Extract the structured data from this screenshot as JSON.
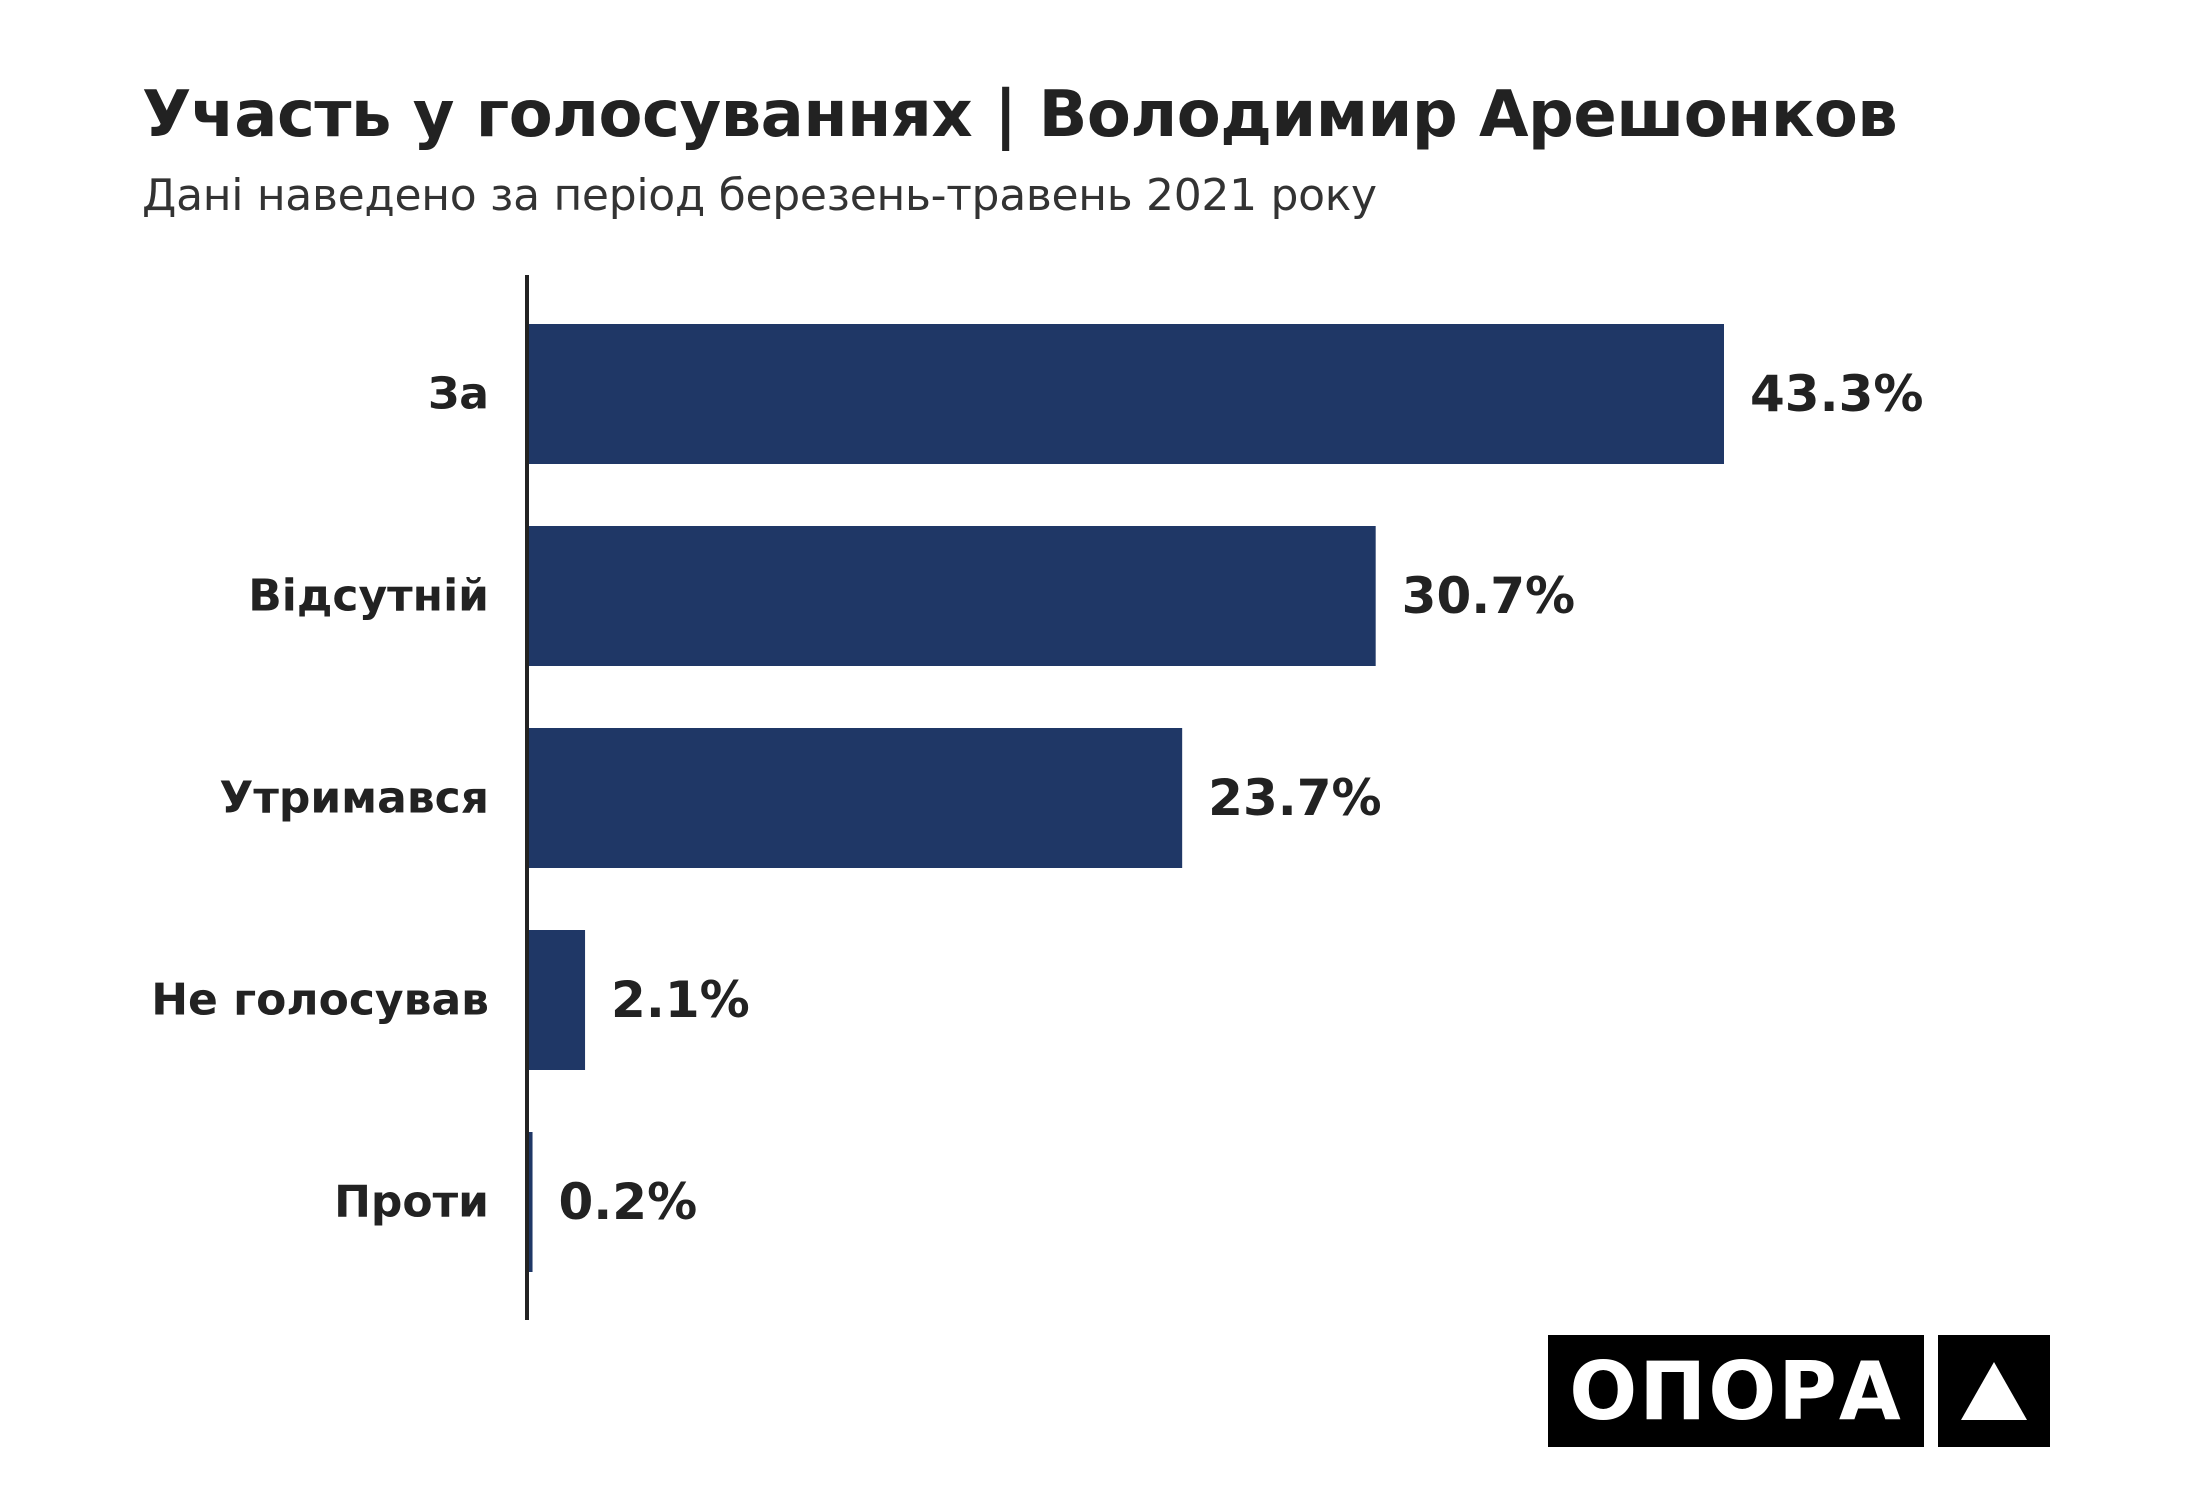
{
  "chart_data": {
    "type": "bar",
    "orientation": "horizontal",
    "title": "Участь у голосуваннях | Володимир Арешонков",
    "subtitle": "Дані наведено за період березень-травень 2021 року",
    "categories": [
      "За",
      "Відсутній",
      "Утримався",
      "Не голосував",
      "Проти"
    ],
    "values": [
      43.3,
      30.7,
      23.7,
      2.1,
      0.2
    ],
    "value_labels": [
      "43.3%",
      "30.7%",
      "23.7%",
      "2.1%",
      "0.2%"
    ],
    "unit": "%",
    "xlim": [
      0,
      45
    ],
    "grid": false,
    "legend": "none",
    "bar_color": "#1f3766"
  },
  "logo": {
    "text": "ОПОРА",
    "mark_icon": "triangle-icon"
  }
}
